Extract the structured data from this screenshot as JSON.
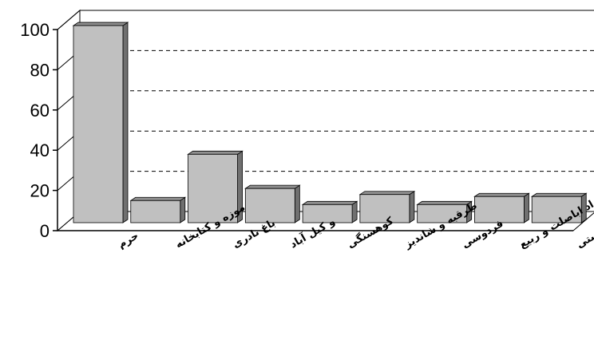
{
  "chart_data": {
    "type": "bar",
    "title": "",
    "xlabel": "",
    "ylabel": "",
    "ylim": [
      0,
      100
    ],
    "yticks": [
      "0",
      "20",
      "40",
      "60",
      "80",
      "100"
    ],
    "categories": [
      "حرم",
      "موزه و کتابخانه",
      "باغ نادری",
      "و کیل آباد",
      "کوهسنگی",
      "طرقبه و شاندیز",
      "فردوسی",
      "خواجه مراد اباصلت و ربیع",
      "صنایع دستی"
    ],
    "values": [
      98,
      11,
      34,
      17,
      9,
      14,
      9,
      13,
      13
    ],
    "grid": "dashed horizontal",
    "bar_color": "#c0c0c0"
  }
}
